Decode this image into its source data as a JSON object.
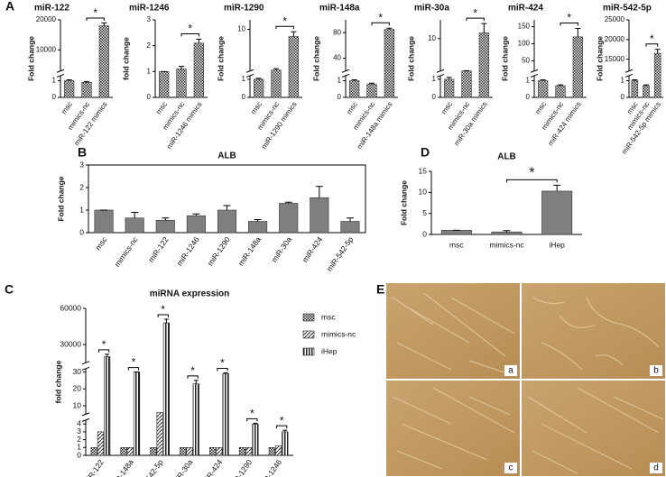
{
  "panel_labels": [
    "A",
    "B",
    "C",
    "D",
    "E"
  ],
  "chart_data": [
    {
      "type": "bar",
      "title": "miR-122",
      "ylabel": "Fold change",
      "categories": [
        "msc",
        "mimics-nc",
        "miR-122 mimics"
      ],
      "values": [
        1,
        0.9,
        18000
      ],
      "errors": [
        0.05,
        0.05,
        1000
      ],
      "fill_pattern": "crosshatch",
      "ylim": [
        0,
        20000
      ],
      "axis_breaks": [
        [
          1.3,
          3000
        ]
      ],
      "yticks": [
        0,
        1,
        10000,
        20000
      ],
      "significance_label": "*"
    },
    {
      "type": "bar",
      "title": "miR-1246",
      "ylabel": "fold change",
      "categories": [
        "msc",
        "mimics-nc",
        "miR-1246 mimics"
      ],
      "values": [
        1,
        1.1,
        2.1
      ],
      "errors": [
        0,
        0.1,
        0.15
      ],
      "fill_pattern": "crosshatch",
      "ylim": [
        0,
        3
      ],
      "yticks": [
        0,
        1,
        2,
        3
      ],
      "significance_label": "*"
    },
    {
      "type": "bar",
      "title": "miR-1290",
      "ylabel": "Fold change",
      "categories": [
        "msc",
        "mimics-nc",
        "miR-1290 mimics"
      ],
      "values": [
        1,
        1.5,
        8.5
      ],
      "errors": [
        0.05,
        0.3,
        1
      ],
      "fill_pattern": "crosshatch",
      "ylim": [
        0,
        12
      ],
      "axis_breaks": [
        [
          1.2,
          1.3
        ]
      ],
      "yticks": [
        0,
        1,
        10
      ],
      "significance_label": "*"
    },
    {
      "type": "bar",
      "title": "miR-148a",
      "ylabel": "Fold change",
      "categories": [
        "msc",
        "mimics-nc",
        "miR-148a mimics"
      ],
      "values": [
        1,
        0.8,
        85
      ],
      "errors": [
        0.05,
        0.05,
        2
      ],
      "fill_pattern": "crosshatch",
      "ylim": [
        0,
        100
      ],
      "axis_breaks": [
        [
          1.3,
          20
        ]
      ],
      "yticks": [
        0,
        1,
        40,
        80
      ],
      "significance_label": "*"
    },
    {
      "type": "bar",
      "title": "miR-30a",
      "ylabel": "Fold change",
      "categories": [
        "msc",
        "mimics-nc",
        "miR-30a mimics"
      ],
      "values": [
        1,
        1.3,
        11.5
      ],
      "errors": [
        0.1,
        0.1,
        2.5
      ],
      "fill_pattern": "crosshatch",
      "ylim": [
        0,
        15
      ],
      "axis_breaks": [
        [
          1.2,
          1.3
        ]
      ],
      "yticks": [
        0,
        1,
        10
      ],
      "significance_label": "*"
    },
    {
      "type": "bar",
      "title": "miR-424",
      "ylabel": "Fold change",
      "categories": [
        "msc",
        "mimics-nc",
        "miR-424 mimics"
      ],
      "values": [
        1,
        0.7,
        120
      ],
      "errors": [
        0.05,
        0.05,
        25
      ],
      "fill_pattern": "crosshatch",
      "ylim": [
        0,
        170
      ],
      "axis_breaks": [
        [
          1.3,
          20
        ]
      ],
      "yticks": [
        0,
        1,
        50,
        100,
        150
      ],
      "significance_label": "*"
    },
    {
      "type": "bar",
      "title": "miR-542-5p",
      "ylabel": "Fold change",
      "categories": [
        "msc",
        "mimics-nc",
        "miR-542-5p mimics"
      ],
      "values": [
        1,
        0.7,
        16500
      ],
      "errors": [
        0.05,
        0.05,
        1000
      ],
      "fill_pattern": "crosshatch",
      "ylim": [
        0,
        25000
      ],
      "axis_breaks": [
        [
          1.3,
          12000
        ]
      ],
      "yticks": [
        0,
        1,
        15000,
        20000,
        25000
      ],
      "significance_label": "*"
    },
    {
      "type": "bar",
      "title": "ALB",
      "ylabel": "Fold change",
      "categories": [
        "msc",
        "mimics-nc",
        "miR-122",
        "miR-1246",
        "miR-1290",
        "miR-148a",
        "miR-30a",
        "miR-424",
        "miR-542-5p"
      ],
      "values": [
        1,
        0.65,
        0.55,
        0.75,
        1.0,
        0.5,
        1.3,
        1.55,
        0.5
      ],
      "errors": [
        0,
        0.25,
        0.1,
        0.08,
        0.2,
        0.08,
        0.05,
        0.5,
        0.15
      ],
      "color": "#7f7f7f",
      "ylim": [
        0,
        3
      ],
      "yticks": [
        0,
        1,
        2,
        3
      ]
    },
    {
      "type": "bar",
      "title": "miRNA expression",
      "ylabel": "fold change",
      "categories": [
        "miR-122",
        "miR-148a",
        "miR-542-5p",
        "miR-30a",
        "miR-424",
        "miR-1290",
        "miR-1246"
      ],
      "series": [
        {
          "name": "msc",
          "fill_pattern": "crosshatch",
          "values": [
            1,
            1,
            1,
            1,
            1,
            1,
            1
          ]
        },
        {
          "name": "mimics-nc",
          "fill_pattern": "diagonal",
          "values": [
            3,
            1,
            6,
            1,
            1,
            1,
            1.2
          ]
        },
        {
          "name": "iHep",
          "fill_pattern": "hlines",
          "values": [
            20000,
            30,
            48000,
            23,
            29,
            4,
            3
          ],
          "errors": [
            2000,
            0,
            3000,
            2,
            0.5,
            0.1,
            0.2
          ]
        }
      ],
      "ylim": [
        0,
        60000
      ],
      "axis_breaks": [
        [
          4.5,
          5
        ],
        [
          32,
          15000
        ]
      ],
      "yticks": [
        0,
        1,
        2,
        3,
        4,
        10,
        20,
        30,
        30000,
        60000
      ],
      "significance_label": "*"
    },
    {
      "type": "bar",
      "title": "ALB",
      "ylabel": "Fold change",
      "categories": [
        "msc",
        "mimics-nc",
        "iHep"
      ],
      "values": [
        1,
        0.6,
        10.3
      ],
      "errors": [
        0,
        0.3,
        1.4
      ],
      "color": "#7f7f7f",
      "ylim": [
        0,
        15
      ],
      "yticks": [
        0,
        5,
        10,
        15
      ],
      "significance_label": "*"
    }
  ],
  "image_labels": [
    "a",
    "b",
    "c",
    "d"
  ]
}
